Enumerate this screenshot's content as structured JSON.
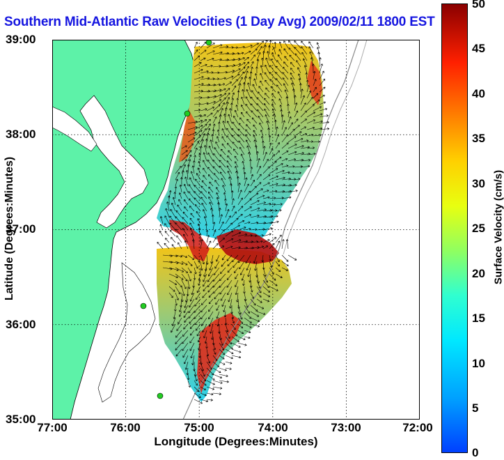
{
  "title": "Southern Mid-Atlantic Raw Velocities (1 Day Avg) 2009/02/11 1800 EST",
  "x_axis": {
    "label": "Longitude (Degrees:Minutes)",
    "ticks": [
      "77:00",
      "76:00",
      "75:00",
      "74:00",
      "73:00",
      "72:00"
    ]
  },
  "y_axis": {
    "label": "Latitude (Degrees:Minutes)",
    "ticks": [
      "39:00",
      "38:00",
      "37:00",
      "36:00",
      "35:00"
    ]
  },
  "colorbar": {
    "label": "Surface Velocity (cm/s)",
    "ticks": [
      "50",
      "45",
      "40",
      "35",
      "30",
      "25",
      "20",
      "15",
      "10",
      "5",
      "0"
    ],
    "range": [
      0,
      50
    ]
  },
  "colors": {
    "land": "#5df2a8",
    "water": "#ffffff",
    "title": "#1515e0"
  },
  "map": {
    "lon_range": [
      -77,
      -72
    ],
    "lat_range": [
      35,
      39
    ],
    "grid": "dotted",
    "features": [
      "coastline",
      "current-field",
      "velocity-arrows",
      "radar-sites",
      "bathymetry-contours"
    ]
  }
}
